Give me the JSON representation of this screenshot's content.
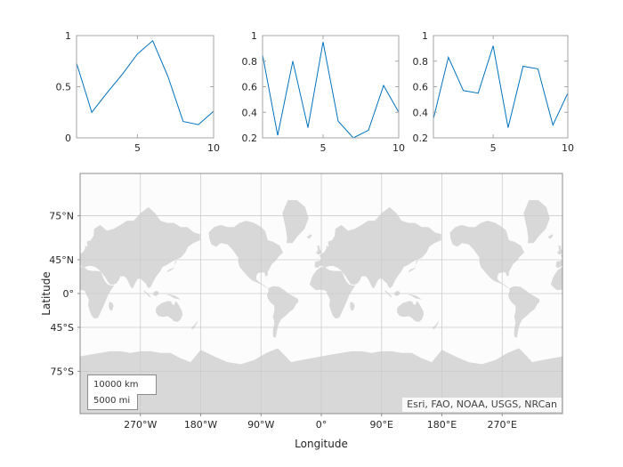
{
  "figure": {
    "background": "#ffffff",
    "line_color": "#0072BD",
    "text_color": "#262626",
    "axes_edge_color": "#a6a6a6",
    "map_colors": {
      "ocean": "#fcfcfc",
      "land": "#d8d8d8",
      "grid": "#cccccc",
      "frame": "#8c8c8c"
    }
  },
  "chart_data": [
    {
      "type": "line",
      "x": [
        1,
        2,
        3,
        4,
        5,
        6,
        7,
        8,
        9,
        10
      ],
      "y": [
        0.73,
        0.25,
        0.44,
        0.62,
        0.82,
        0.95,
        0.6,
        0.16,
        0.13,
        0.26
      ],
      "xlim": [
        1,
        10
      ],
      "ylim": [
        0,
        1
      ],
      "xticks": [
        5,
        10
      ],
      "xtick_labels": [
        "5",
        "10"
      ],
      "yticks": [
        0,
        0.5,
        1
      ],
      "ytick_labels": [
        "0",
        "0.5",
        "1"
      ],
      "grid": false,
      "legend": null,
      "title": ""
    },
    {
      "type": "line",
      "x": [
        1,
        2,
        3,
        4,
        5,
        6,
        7,
        8,
        9,
        10
      ],
      "y": [
        0.85,
        0.22,
        0.8,
        0.28,
        0.95,
        0.33,
        0.2,
        0.26,
        0.61,
        0.4
      ],
      "xlim": [
        1,
        10
      ],
      "ylim": [
        0.2,
        1
      ],
      "xticks": [
        5,
        10
      ],
      "xtick_labels": [
        "5",
        "10"
      ],
      "yticks": [
        0.2,
        0.4,
        0.6,
        0.8,
        1
      ],
      "ytick_labels": [
        "0.2",
        "0.4",
        "0.6",
        "0.8",
        "1"
      ],
      "grid": false,
      "legend": null,
      "title": ""
    },
    {
      "type": "line",
      "x": [
        1,
        2,
        3,
        4,
        5,
        6,
        7,
        8,
        9,
        10
      ],
      "y": [
        0.35,
        0.83,
        0.57,
        0.55,
        0.92,
        0.28,
        0.76,
        0.74,
        0.3,
        0.55
      ],
      "xlim": [
        1,
        10
      ],
      "ylim": [
        0.2,
        1
      ],
      "xticks": [
        5,
        10
      ],
      "xtick_labels": [
        "5",
        "10"
      ],
      "yticks": [
        0.2,
        0.4,
        0.6,
        0.8,
        1
      ],
      "ytick_labels": [
        "0.2",
        "0.4",
        "0.6",
        "0.8",
        "1"
      ],
      "grid": false,
      "legend": null,
      "title": ""
    },
    {
      "type": "map",
      "projection": "mercator",
      "lonlim": [
        -360,
        360
      ],
      "latlim": [
        -85,
        85
      ],
      "lon_tick_values": [
        -270,
        -180,
        -90,
        0,
        90,
        180,
        270
      ],
      "lon_tick_labels": [
        "270°W",
        "180°W",
        "90°W",
        "0°",
        "90°E",
        "180°E",
        "270°E"
      ],
      "lat_tick_values": [
        75,
        45,
        0,
        -45,
        -75
      ],
      "lat_tick_labels": [
        "75°N",
        "45°N",
        "0°",
        "45°S",
        "75°S"
      ],
      "xlabel": "Longitude",
      "ylabel": "Latitude",
      "scalebar": {
        "km": "10000 km",
        "mi": "5000 mi"
      },
      "attribution": "Esri, FAO, NOAA, USGS, NRCan"
    }
  ],
  "map_land": [
    {
      "name": "north-america",
      "points": [
        [
          -168,
          67
        ],
        [
          -160,
          70
        ],
        [
          -150,
          71
        ],
        [
          -140,
          70
        ],
        [
          -130,
          70
        ],
        [
          -122,
          72
        ],
        [
          -112,
          73
        ],
        [
          -100,
          72
        ],
        [
          -90,
          70
        ],
        [
          -84,
          68
        ],
        [
          -80,
          62
        ],
        [
          -72,
          61
        ],
        [
          -62,
          58
        ],
        [
          -57,
          52
        ],
        [
          -64,
          48
        ],
        [
          -68,
          44
        ],
        [
          -74,
          40
        ],
        [
          -77,
          35
        ],
        [
          -80,
          31
        ],
        [
          -80,
          26
        ],
        [
          -83,
          25
        ],
        [
          -85,
          30
        ],
        [
          -90,
          30
        ],
        [
          -95,
          29
        ],
        [
          -97,
          25
        ],
        [
          -97,
          21
        ],
        [
          -94,
          18
        ],
        [
          -90,
          15
        ],
        [
          -86,
          13
        ],
        [
          -83,
          10
        ],
        [
          -79,
          8
        ],
        [
          -83,
          9
        ],
        [
          -88,
          13
        ],
        [
          -93,
          15
        ],
        [
          -98,
          17
        ],
        [
          -103,
          19
        ],
        [
          -108,
          23
        ],
        [
          -113,
          28
        ],
        [
          -118,
          33
        ],
        [
          -122,
          37
        ],
        [
          -124,
          42
        ],
        [
          -124,
          47
        ],
        [
          -128,
          51
        ],
        [
          -133,
          55
        ],
        [
          -140,
          59
        ],
        [
          -150,
          60
        ],
        [
          -157,
          57
        ],
        [
          -164,
          59
        ],
        [
          -167,
          63
        ]
      ]
    },
    {
      "name": "greenland",
      "points": [
        [
          -52,
          60
        ],
        [
          -43,
          60
        ],
        [
          -35,
          65
        ],
        [
          -25,
          69
        ],
        [
          -19,
          74
        ],
        [
          -24,
          78
        ],
        [
          -36,
          80
        ],
        [
          -50,
          80
        ],
        [
          -58,
          76
        ],
        [
          -53,
          69
        ],
        [
          -51,
          63
        ]
      ]
    },
    {
      "name": "south-america",
      "points": [
        [
          -79,
          8
        ],
        [
          -72,
          11
        ],
        [
          -63,
          10
        ],
        [
          -55,
          5
        ],
        [
          -49,
          0
        ],
        [
          -42,
          -4
        ],
        [
          -35,
          -8
        ],
        [
          -34,
          -12
        ],
        [
          -38,
          -16
        ],
        [
          -41,
          -22
        ],
        [
          -48,
          -27
        ],
        [
          -54,
          -32
        ],
        [
          -60,
          -36
        ],
        [
          -64,
          -42
        ],
        [
          -66,
          -48
        ],
        [
          -68,
          -55
        ],
        [
          -72,
          -54
        ],
        [
          -72,
          -47
        ],
        [
          -70,
          -40
        ],
        [
          -72,
          -33
        ],
        [
          -70,
          -25
        ],
        [
          -70,
          -18
        ],
        [
          -76,
          -13
        ],
        [
          -80,
          -7
        ],
        [
          -81,
          -2
        ],
        [
          -79,
          3
        ]
      ]
    },
    {
      "name": "africa",
      "points": [
        [
          -17,
          15
        ],
        [
          -15,
          21
        ],
        [
          -12,
          27
        ],
        [
          -7,
          33
        ],
        [
          -2,
          36
        ],
        [
          5,
          37
        ],
        [
          10,
          34
        ],
        [
          12,
          33
        ],
        [
          19,
          32
        ],
        [
          26,
          32
        ],
        [
          31,
          31
        ],
        [
          33,
          27
        ],
        [
          35,
          22
        ],
        [
          38,
          17
        ],
        [
          42,
          13
        ],
        [
          47,
          12
        ],
        [
          51,
          12
        ],
        [
          46,
          5
        ],
        [
          42,
          -2
        ],
        [
          39,
          -9
        ],
        [
          36,
          -16
        ],
        [
          32,
          -24
        ],
        [
          27,
          -34
        ],
        [
          21,
          -35
        ],
        [
          17,
          -31
        ],
        [
          14,
          -24
        ],
        [
          12,
          -17
        ],
        [
          13,
          -9
        ],
        [
          9,
          -1
        ],
        [
          7,
          4
        ],
        [
          0,
          6
        ],
        [
          -8,
          5
        ],
        [
          -13,
          9
        ],
        [
          -17,
          13
        ]
      ]
    },
    {
      "name": "eurasia",
      "points": [
        [
          -10,
          37
        ],
        [
          -9,
          43
        ],
        [
          -2,
          44
        ],
        [
          0,
          47
        ],
        [
          -3,
          49
        ],
        [
          1,
          51
        ],
        [
          5,
          53
        ],
        [
          8,
          56
        ],
        [
          7,
          58
        ],
        [
          11,
          57
        ],
        [
          10,
          61
        ],
        [
          16,
          62
        ],
        [
          20,
          65
        ],
        [
          21,
          69
        ],
        [
          30,
          71
        ],
        [
          40,
          68
        ],
        [
          50,
          69
        ],
        [
          60,
          71
        ],
        [
          70,
          73
        ],
        [
          80,
          73
        ],
        [
          90,
          76
        ],
        [
          102,
          78
        ],
        [
          112,
          76
        ],
        [
          120,
          73
        ],
        [
          130,
          72
        ],
        [
          140,
          72
        ],
        [
          150,
          70
        ],
        [
          160,
          70
        ],
        [
          170,
          67
        ],
        [
          179,
          66
        ],
        [
          179,
          62
        ],
        [
          169,
          60
        ],
        [
          161,
          57
        ],
        [
          157,
          52
        ],
        [
          150,
          47
        ],
        [
          142,
          45
        ],
        [
          135,
          42
        ],
        [
          129,
          39
        ],
        [
          123,
          37
        ],
        [
          120,
          32
        ],
        [
          113,
          24
        ],
        [
          109,
          17
        ],
        [
          106,
          11
        ],
        [
          103,
          8
        ],
        [
          100,
          10
        ],
        [
          98,
          15
        ],
        [
          94,
          18
        ],
        [
          90,
          22
        ],
        [
          86,
          21
        ],
        [
          82,
          15
        ],
        [
          79,
          8
        ],
        [
          76,
          9
        ],
        [
          73,
          15
        ],
        [
          70,
          21
        ],
        [
          66,
          25
        ],
        [
          60,
          25
        ],
        [
          58,
          20
        ],
        [
          54,
          15
        ],
        [
          49,
          13
        ],
        [
          44,
          14
        ],
        [
          41,
          18
        ],
        [
          37,
          24
        ],
        [
          33,
          29
        ],
        [
          29,
          33
        ],
        [
          24,
          36
        ],
        [
          18,
          38
        ],
        [
          12,
          38
        ],
        [
          5,
          36
        ],
        [
          0,
          39
        ],
        [
          -5,
          36
        ],
        [
          -8,
          36
        ]
      ]
    },
    {
      "name": "australia",
      "points": [
        [
          113,
          -22
        ],
        [
          115,
          -19
        ],
        [
          122,
          -14
        ],
        [
          128,
          -12
        ],
        [
          132,
          -11
        ],
        [
          136,
          -12
        ],
        [
          137,
          -15
        ],
        [
          140,
          -17
        ],
        [
          143,
          -11
        ],
        [
          146,
          -15
        ],
        [
          149,
          -20
        ],
        [
          152,
          -25
        ],
        [
          153,
          -30
        ],
        [
          150,
          -36
        ],
        [
          146,
          -39
        ],
        [
          140,
          -38
        ],
        [
          136,
          -35
        ],
        [
          131,
          -32
        ],
        [
          124,
          -33
        ],
        [
          117,
          -32
        ],
        [
          113,
          -27
        ]
      ]
    },
    {
      "name": "antarctica",
      "points": [
        [
          -180,
          -64
        ],
        [
          -160,
          -68
        ],
        [
          -140,
          -71
        ],
        [
          -120,
          -72
        ],
        [
          -100,
          -70
        ],
        [
          -82,
          -66
        ],
        [
          -65,
          -63
        ],
        [
          -58,
          -66
        ],
        [
          -45,
          -71
        ],
        [
          -30,
          -70
        ],
        [
          -15,
          -69
        ],
        [
          0,
          -68
        ],
        [
          15,
          -67
        ],
        [
          30,
          -66
        ],
        [
          45,
          -65
        ],
        [
          60,
          -65
        ],
        [
          75,
          -66
        ],
        [
          90,
          -65
        ],
        [
          105,
          -65
        ],
        [
          120,
          -66
        ],
        [
          135,
          -66
        ],
        [
          150,
          -69
        ],
        [
          165,
          -71
        ],
        [
          180,
          -64
        ],
        [
          180,
          -86
        ],
        [
          -180,
          -86
        ]
      ]
    },
    {
      "name": "madagascar",
      "points": [
        [
          44,
          -12
        ],
        [
          48,
          -14
        ],
        [
          50,
          -18
        ],
        [
          48,
          -24
        ],
        [
          45,
          -25
        ],
        [
          43,
          -20
        ],
        [
          43,
          -15
        ]
      ]
    },
    {
      "name": "japan",
      "points": [
        [
          130,
          31
        ],
        [
          133,
          34
        ],
        [
          137,
          35
        ],
        [
          140,
          36
        ],
        [
          141,
          40
        ],
        [
          142,
          44
        ],
        [
          144,
          44
        ],
        [
          141,
          39
        ],
        [
          140,
          35
        ],
        [
          136,
          33
        ],
        [
          132,
          31
        ],
        [
          130,
          30
        ]
      ]
    },
    {
      "name": "british-isles",
      "points": [
        [
          -5,
          50
        ],
        [
          -1,
          51
        ],
        [
          0,
          53
        ],
        [
          -2,
          55
        ],
        [
          -3,
          58
        ],
        [
          -6,
          58
        ],
        [
          -5,
          54
        ],
        [
          -8,
          52
        ]
      ]
    },
    {
      "name": "iceland",
      "points": [
        [
          -22,
          64
        ],
        [
          -16,
          66
        ],
        [
          -14,
          65
        ],
        [
          -18,
          63
        ]
      ]
    },
    {
      "name": "sumatra",
      "points": [
        [
          95,
          5
        ],
        [
          99,
          2
        ],
        [
          103,
          -2
        ],
        [
          106,
          -6
        ],
        [
          103,
          -5
        ],
        [
          99,
          0
        ],
        [
          95,
          3
        ]
      ]
    },
    {
      "name": "borneo",
      "points": [
        [
          109,
          1
        ],
        [
          113,
          4
        ],
        [
          117,
          3
        ],
        [
          117,
          -1
        ],
        [
          113,
          -4
        ],
        [
          109,
          -2
        ]
      ]
    },
    {
      "name": "new-guinea",
      "points": [
        [
          131,
          -1
        ],
        [
          136,
          -2
        ],
        [
          141,
          -3
        ],
        [
          146,
          -6
        ],
        [
          150,
          -9
        ],
        [
          145,
          -8
        ],
        [
          140,
          -7
        ],
        [
          134,
          -3
        ],
        [
          130,
          -2
        ]
      ]
    },
    {
      "name": "new-zealand",
      "points": [
        [
          166,
          -45
        ],
        [
          170,
          -43
        ],
        [
          174,
          -39
        ],
        [
          176,
          -37
        ],
        [
          174,
          -41
        ],
        [
          170,
          -46
        ],
        [
          167,
          -47
        ]
      ]
    },
    {
      "name": "cuba",
      "points": [
        [
          -84,
          23
        ],
        [
          -78,
          21
        ],
        [
          -75,
          20
        ],
        [
          -80,
          22
        ]
      ]
    }
  ]
}
